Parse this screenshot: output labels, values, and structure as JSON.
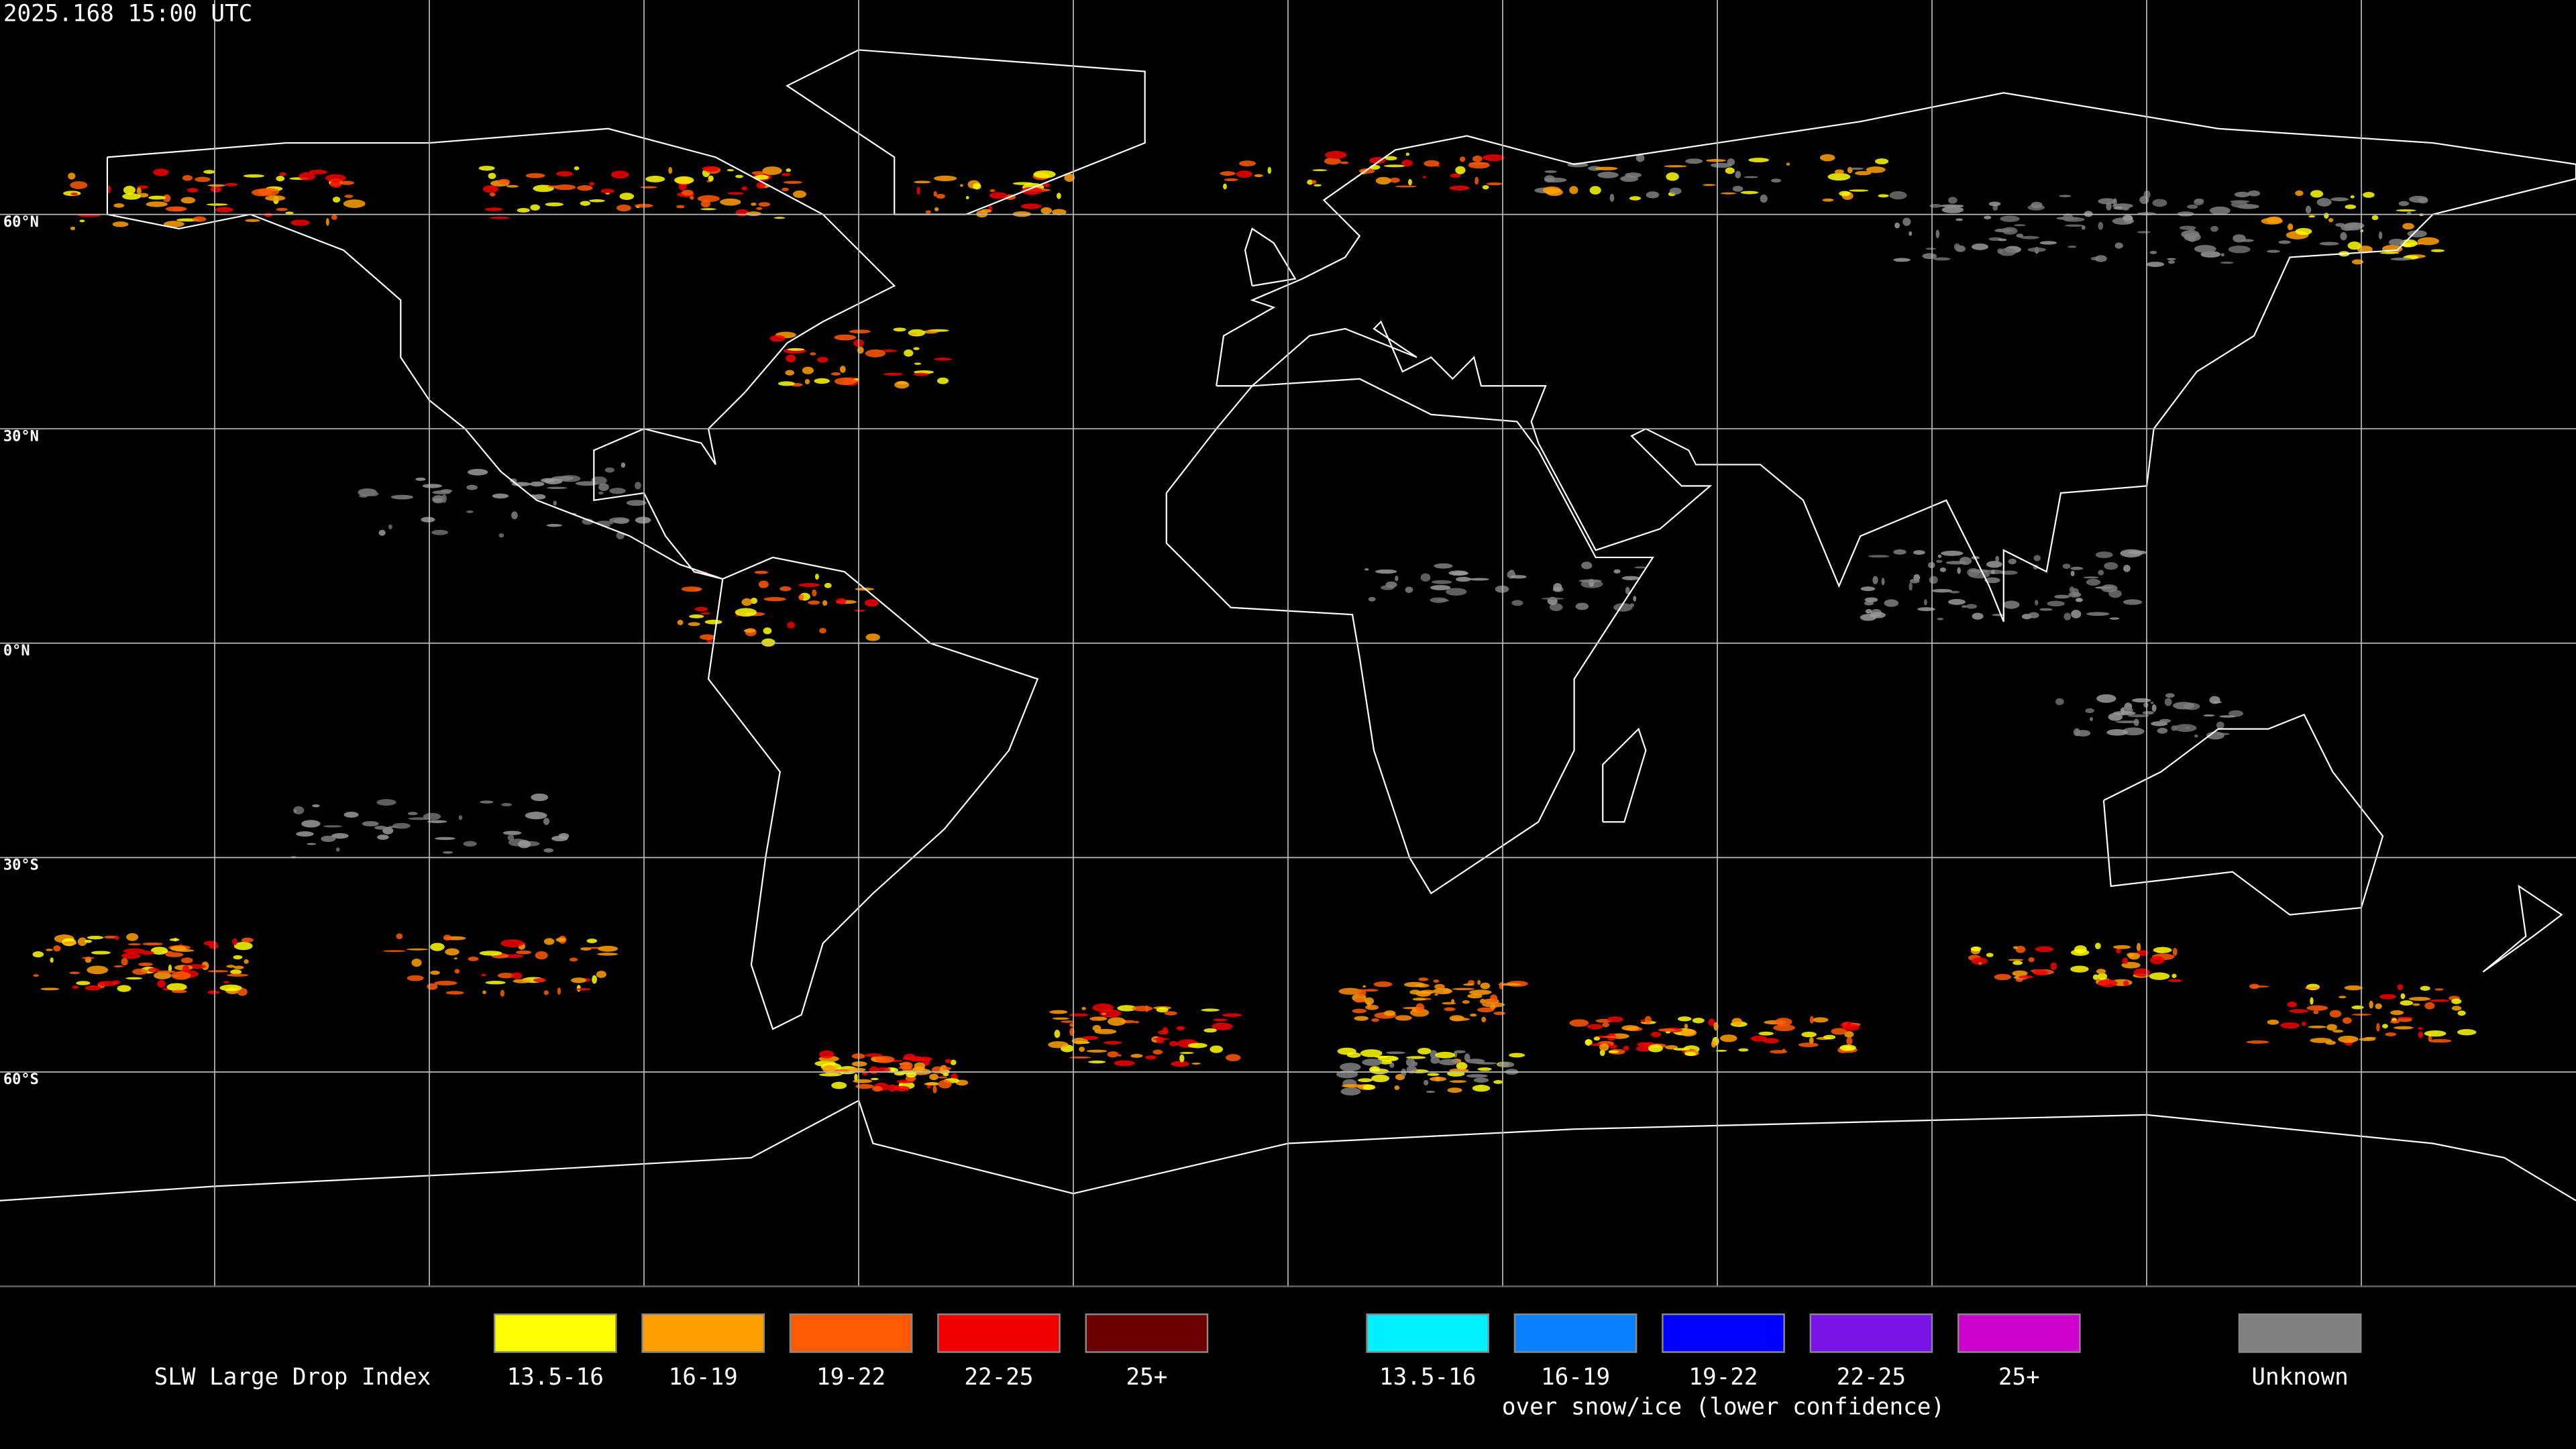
{
  "header": {
    "timestamp": "2025.168 15:00 UTC"
  },
  "grid": {
    "lat_labels": [
      "60°N",
      "30°N",
      "0°N",
      "30°S",
      "60°S"
    ]
  },
  "legend": {
    "title": "SLW Large Drop Index",
    "items": [
      {
        "label": "13.5-16",
        "color": "#ffff00"
      },
      {
        "label": "16-19",
        "color": "#ffa000"
      },
      {
        "label": "19-22",
        "color": "#ff5a00"
      },
      {
        "label": "22-25",
        "color": "#f00000"
      },
      {
        "label": "25+",
        "color": "#6a0000"
      }
    ],
    "snow_items": [
      {
        "label": "13.5-16",
        "color": "#00f0ff"
      },
      {
        "label": "16-19",
        "color": "#0a82ff"
      },
      {
        "label": "19-22",
        "color": "#0000ff"
      },
      {
        "label": "22-25",
        "color": "#7a14e6"
      },
      {
        "label": "25+",
        "color": "#cc00cc"
      }
    ],
    "snow_caption": "over snow/ice (lower confidence)",
    "unknown": {
      "label": "Unknown",
      "color": "#808080"
    }
  }
}
